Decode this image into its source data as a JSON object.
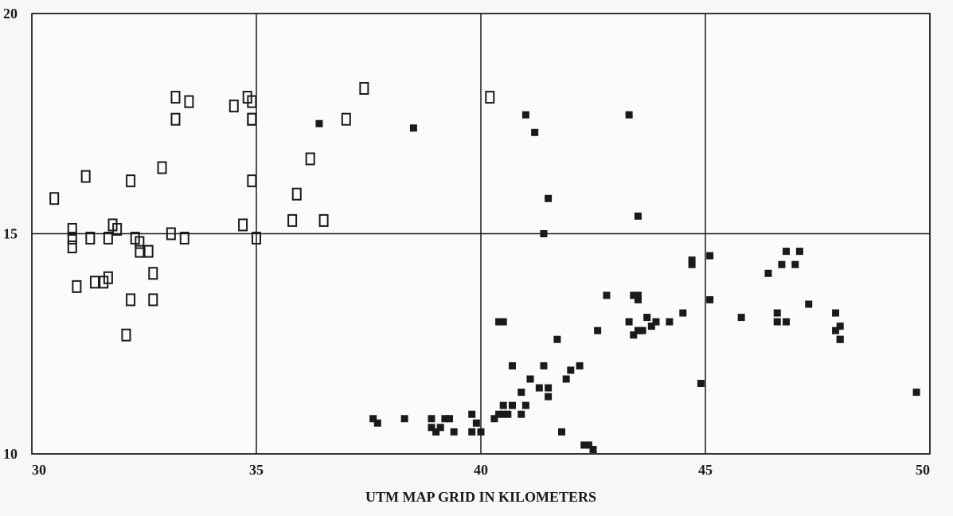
{
  "chart_data": {
    "type": "scatter",
    "xlabel": "UTM MAP GRID IN KILOMETERS",
    "xlim": [
      30,
      50
    ],
    "xticks": [
      30,
      35,
      40,
      45,
      50
    ],
    "ylim": [
      10,
      20
    ],
    "yticks": [
      10,
      15,
      20
    ],
    "grid": true,
    "series": [
      {
        "marker": "open",
        "color": "#1a1a1a",
        "x": [
          30.5,
          30.9,
          30.9,
          30.9,
          31.0,
          31.2,
          31.3,
          31.4,
          31.6,
          31.7,
          31.7,
          31.8,
          31.9,
          32.1,
          32.2,
          32.2,
          32.3,
          32.4,
          32.4,
          32.6,
          32.7,
          32.7,
          32.9,
          33.1,
          33.2,
          33.2,
          33.4,
          33.5,
          34.5,
          34.7,
          34.8,
          34.9,
          34.9,
          34.9,
          34.9,
          35.0,
          35.8,
          35.9,
          36.2,
          36.5,
          37.0,
          37.4,
          40.2
        ],
        "y": [
          15.8,
          15.1,
          14.9,
          14.7,
          13.8,
          16.3,
          14.9,
          13.9,
          13.9,
          14.0,
          14.9,
          15.2,
          15.1,
          12.7,
          13.5,
          16.2,
          14.9,
          14.6,
          14.8,
          14.6,
          14.1,
          13.5,
          16.5,
          15.0,
          17.6,
          18.1,
          14.9,
          18.0,
          17.9,
          15.2,
          18.1,
          17.6,
          18.0,
          16.2,
          17.6,
          14.9,
          15.3,
          15.9,
          16.7,
          15.3,
          17.6,
          18.3,
          18.1
        ]
      },
      {
        "marker": "filled",
        "color": "#1a1a1a",
        "x": [
          36.4,
          38.5,
          41.0,
          41.2,
          43.3,
          43.5,
          41.5,
          41.4,
          37.6,
          37.7,
          38.3,
          38.9,
          38.9,
          39.0,
          39.1,
          39.2,
          39.3,
          39.4,
          39.8,
          39.8,
          39.9,
          40.0,
          40.3,
          40.4,
          40.5,
          40.5,
          40.6,
          40.7,
          40.7,
          40.9,
          40.9,
          41.0,
          41.1,
          41.1,
          41.3,
          41.4,
          41.5,
          41.5,
          41.7,
          41.8,
          41.9,
          42.0,
          42.2,
          42.3,
          42.4,
          42.5,
          40.4,
          40.5,
          42.6,
          42.8,
          43.3,
          43.4,
          43.5,
          43.5,
          43.4,
          43.5,
          43.6,
          43.7,
          43.8,
          43.9,
          44.2,
          44.5,
          44.7,
          44.7,
          44.9,
          45.1,
          45.1,
          45.8,
          46.4,
          46.6,
          46.6,
          46.7,
          46.8,
          46.8,
          47.0,
          47.1,
          47.3,
          47.9,
          47.9,
          48.0,
          48.0,
          48.0,
          49.7
        ],
        "y": [
          17.5,
          17.4,
          17.7,
          17.3,
          17.7,
          15.4,
          15.8,
          15.0,
          10.8,
          10.7,
          10.8,
          10.8,
          10.6,
          10.5,
          10.6,
          10.8,
          10.8,
          10.5,
          10.9,
          10.5,
          10.7,
          10.5,
          10.8,
          10.9,
          10.9,
          11.1,
          10.9,
          11.1,
          12.0,
          10.9,
          11.4,
          11.1,
          11.7,
          11.7,
          11.5,
          12.0,
          11.5,
          11.3,
          12.6,
          10.5,
          11.7,
          11.9,
          12.0,
          10.2,
          10.2,
          10.1,
          13.0,
          13.0,
          12.8,
          13.6,
          13.0,
          13.6,
          13.6,
          13.5,
          12.7,
          12.8,
          12.8,
          13.1,
          12.9,
          13.0,
          13.0,
          13.2,
          14.4,
          14.3,
          11.6,
          14.5,
          13.5,
          13.1,
          14.1,
          13.2,
          13.0,
          14.3,
          13.0,
          14.6,
          14.3,
          14.6,
          13.4,
          12.8,
          13.2,
          12.6,
          12.6,
          12.9,
          11.4
        ]
      }
    ]
  }
}
